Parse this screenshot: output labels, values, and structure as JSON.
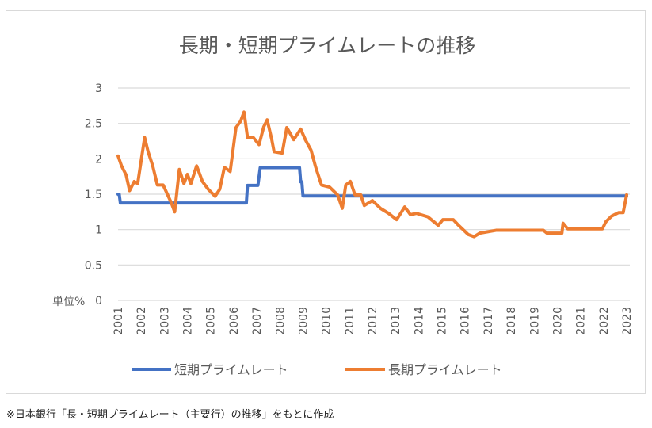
{
  "chart_data": {
    "type": "line",
    "title": "長期・短期プライムレートの推移",
    "ylabel": "単位%",
    "xlabel": "",
    "ylim": [
      0,
      3
    ],
    "yticks": [
      "0",
      "0.5",
      "1",
      "1.5",
      "2",
      "2.5",
      "3"
    ],
    "xlim": [
      2001,
      2023
    ],
    "xticks": [
      "2001",
      "2002",
      "2003",
      "2004",
      "2005",
      "2006",
      "2007",
      "2008",
      "2009",
      "2010",
      "2011",
      "2012",
      "2013",
      "2014",
      "2015",
      "2016",
      "2017",
      "2018",
      "2019",
      "2020",
      "2021",
      "2022",
      "2023"
    ],
    "grid": true,
    "legend": "bottom",
    "series": [
      {
        "name": "短期プライムレート",
        "color": "#4472C4",
        "points": [
          [
            2001.0,
            1.5
          ],
          [
            2001.05,
            1.5
          ],
          [
            2001.1,
            1.375
          ],
          [
            2006.55,
            1.375
          ],
          [
            2006.6,
            1.625
          ],
          [
            2007.05,
            1.625
          ],
          [
            2007.15,
            1.875
          ],
          [
            2008.85,
            1.875
          ],
          [
            2008.9,
            1.675
          ],
          [
            2008.95,
            1.675
          ],
          [
            2009.0,
            1.475
          ],
          [
            2023.0,
            1.475
          ]
        ]
      },
      {
        "name": "長期プライムレート",
        "color": "#ED7D31",
        "points": [
          [
            2001.0,
            2.04
          ],
          [
            2001.15,
            1.9
          ],
          [
            2001.35,
            1.77
          ],
          [
            2001.5,
            1.55
          ],
          [
            2001.7,
            1.68
          ],
          [
            2001.85,
            1.65
          ],
          [
            2002.15,
            2.3
          ],
          [
            2002.3,
            2.1
          ],
          [
            2002.5,
            1.9
          ],
          [
            2002.7,
            1.63
          ],
          [
            2002.95,
            1.63
          ],
          [
            2003.3,
            1.38
          ],
          [
            2003.45,
            1.25
          ],
          [
            2003.55,
            1.55
          ],
          [
            2003.65,
            1.85
          ],
          [
            2003.85,
            1.65
          ],
          [
            2004.0,
            1.78
          ],
          [
            2004.15,
            1.65
          ],
          [
            2004.4,
            1.9
          ],
          [
            2004.65,
            1.68
          ],
          [
            2004.9,
            1.57
          ],
          [
            2005.2,
            1.47
          ],
          [
            2005.4,
            1.57
          ],
          [
            2005.6,
            1.88
          ],
          [
            2005.85,
            1.82
          ],
          [
            2006.1,
            2.44
          ],
          [
            2006.3,
            2.53
          ],
          [
            2006.45,
            2.66
          ],
          [
            2006.6,
            2.3
          ],
          [
            2006.85,
            2.3
          ],
          [
            2007.1,
            2.2
          ],
          [
            2007.3,
            2.45
          ],
          [
            2007.45,
            2.55
          ],
          [
            2007.65,
            2.27
          ],
          [
            2007.75,
            2.1
          ],
          [
            2008.1,
            2.08
          ],
          [
            2008.3,
            2.44
          ],
          [
            2008.6,
            2.27
          ],
          [
            2008.9,
            2.42
          ],
          [
            2009.1,
            2.27
          ],
          [
            2009.35,
            2.12
          ],
          [
            2009.55,
            1.88
          ],
          [
            2009.8,
            1.63
          ],
          [
            2010.15,
            1.6
          ],
          [
            2010.5,
            1.49
          ],
          [
            2010.7,
            1.3
          ],
          [
            2010.85,
            1.63
          ],
          [
            2011.05,
            1.68
          ],
          [
            2011.25,
            1.49
          ],
          [
            2011.5,
            1.49
          ],
          [
            2011.65,
            1.34
          ],
          [
            2012.0,
            1.41
          ],
          [
            2012.35,
            1.3
          ],
          [
            2012.7,
            1.23
          ],
          [
            2013.05,
            1.14
          ],
          [
            2013.4,
            1.32
          ],
          [
            2013.65,
            1.21
          ],
          [
            2013.9,
            1.23
          ],
          [
            2014.4,
            1.18
          ],
          [
            2014.85,
            1.06
          ],
          [
            2015.05,
            1.14
          ],
          [
            2015.5,
            1.14
          ],
          [
            2015.7,
            1.07
          ],
          [
            2016.15,
            0.93
          ],
          [
            2016.4,
            0.9
          ],
          [
            2016.65,
            0.95
          ],
          [
            2017.35,
            0.99
          ],
          [
            2019.4,
            0.99
          ],
          [
            2019.55,
            0.95
          ],
          [
            2020.2,
            0.95
          ],
          [
            2020.25,
            1.09
          ],
          [
            2020.45,
            1.01
          ],
          [
            2021.95,
            1.01
          ],
          [
            2022.1,
            1.11
          ],
          [
            2022.35,
            1.19
          ],
          [
            2022.65,
            1.24
          ],
          [
            2022.85,
            1.24
          ],
          [
            2023.0,
            1.49
          ]
        ]
      }
    ]
  },
  "footer": {
    "source": "※日本銀行「長・短期プライムレート（主要行）の推移」をもとに作成"
  }
}
